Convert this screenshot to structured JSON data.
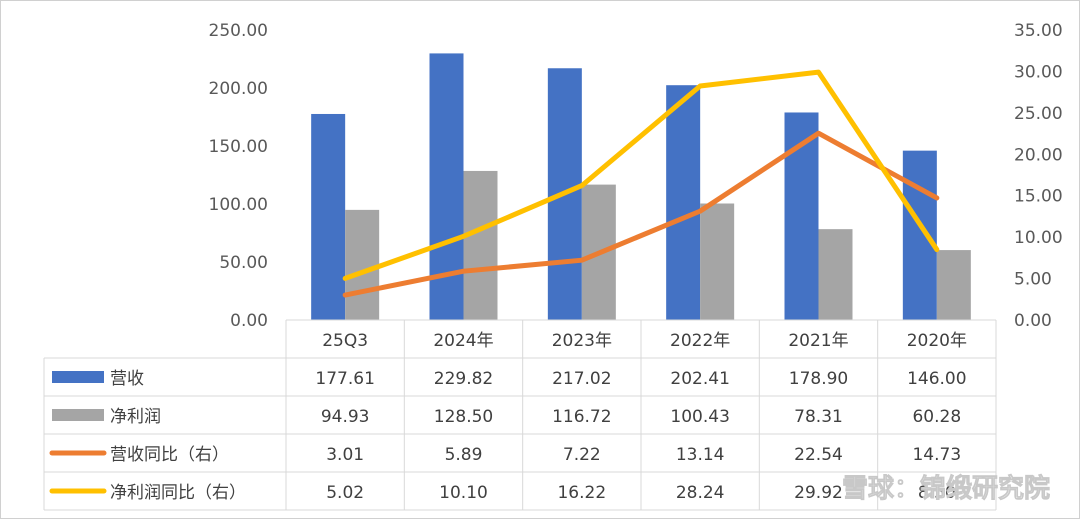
{
  "chart_data": {
    "type": "bar",
    "categories": [
      "25Q3",
      "2024年",
      "2023年",
      "2022年",
      "2021年",
      "2020年"
    ],
    "series": [
      {
        "name": "营收",
        "kind": "bar",
        "axis": "left",
        "color": "#4472C4",
        "values": [
          177.61,
          229.82,
          217.02,
          202.41,
          178.9,
          146.0
        ],
        "labels": [
          "177.61",
          "229.82",
          "217.02",
          "202.41",
          "178.90",
          "146.00"
        ]
      },
      {
        "name": "净利润",
        "kind": "bar",
        "axis": "left",
        "color": "#A5A5A5",
        "values": [
          94.93,
          128.5,
          116.72,
          100.43,
          78.31,
          60.28
        ],
        "labels": [
          "94.93",
          "128.50",
          "116.72",
          "100.43",
          "78.31",
          "60.28"
        ]
      },
      {
        "name": "营收同比（右）",
        "kind": "line",
        "axis": "right",
        "color": "#ED7D31",
        "values": [
          3.01,
          5.89,
          7.22,
          13.14,
          22.54,
          14.73
        ],
        "labels": [
          "3.01",
          "5.89",
          "7.22",
          "13.14",
          "22.54",
          "14.73"
        ]
      },
      {
        "name": "净利润同比（右）",
        "kind": "line",
        "axis": "right",
        "color": "#FFC000",
        "values": [
          5.02,
          10.1,
          16.22,
          28.24,
          29.92,
          8.5
        ],
        "labels": [
          "5.02",
          "10.10",
          "16.22",
          "28.24",
          "29.92",
          "8.50"
        ]
      }
    ],
    "ylim_left": [
      0,
      250
    ],
    "ylim_right": [
      0,
      35
    ],
    "yticks_left": [
      "0.00",
      "50.00",
      "100.00",
      "150.00",
      "200.00",
      "250.00"
    ],
    "yticks_right": [
      "0.00",
      "5.00",
      "10.00",
      "15.00",
      "20.00",
      "25.00",
      "30.00",
      "35.00"
    ],
    "grid": false,
    "legend": "data-table"
  },
  "watermark": "雪球：锦缎研究院"
}
